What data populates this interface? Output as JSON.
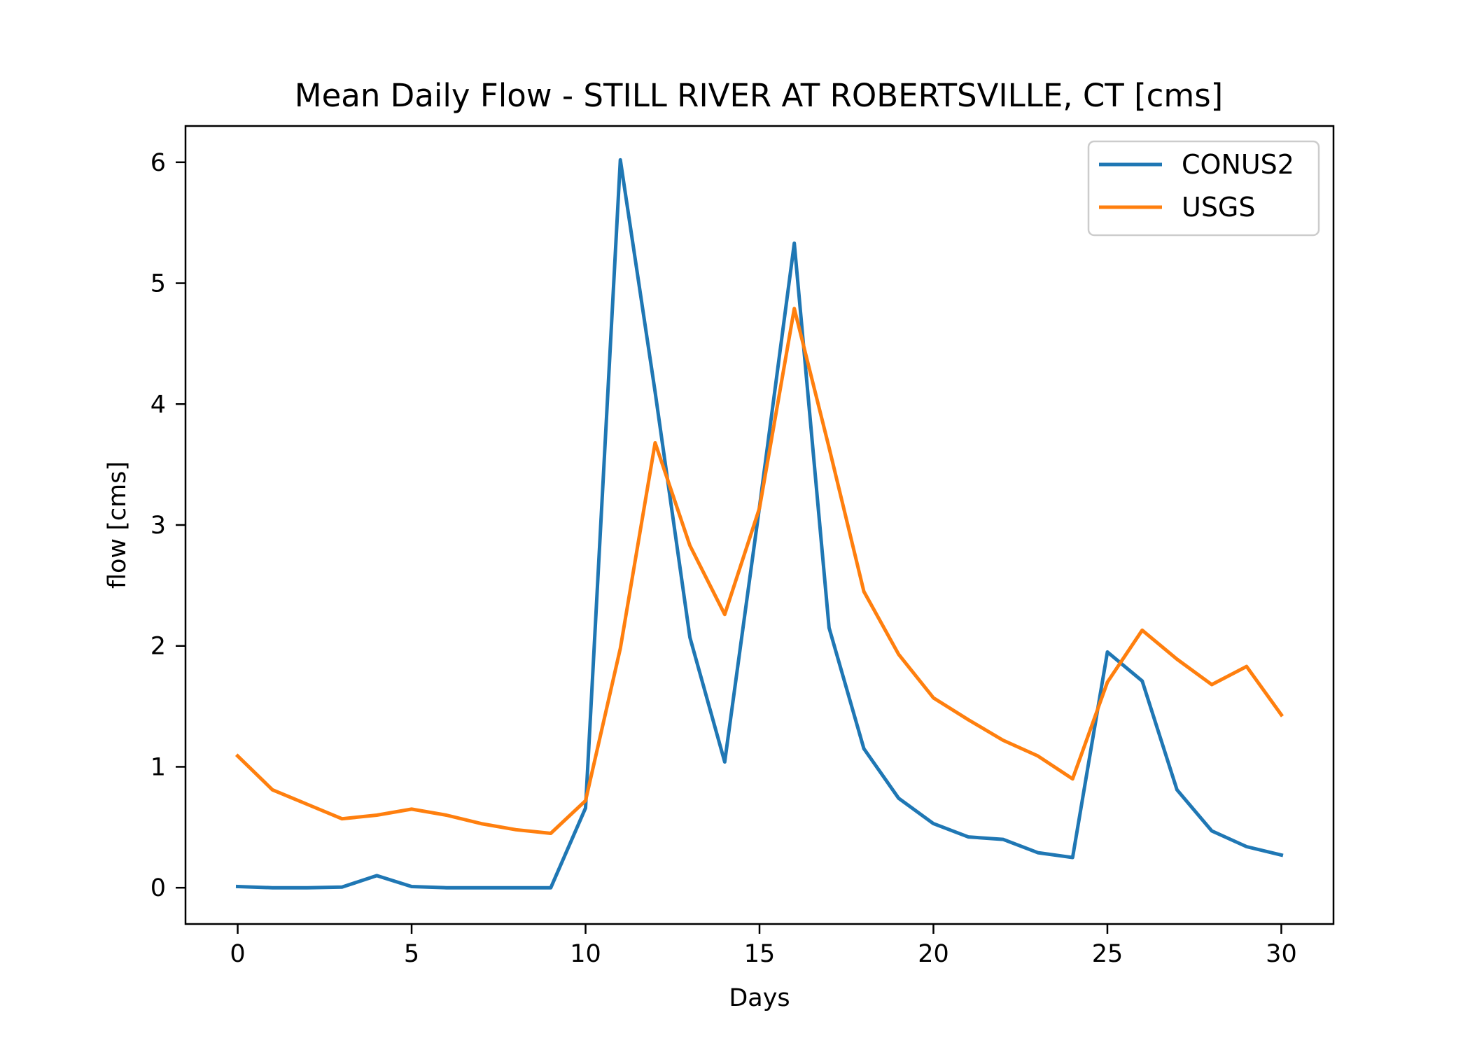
{
  "chart_data": {
    "type": "line",
    "title": "Mean Daily Flow - STILL RIVER AT ROBERTSVILLE, CT [cms]",
    "xlabel": "Days",
    "ylabel": "flow [cms]",
    "xlim": [
      -1.5,
      31.5
    ],
    "ylim": [
      -0.3,
      6.3
    ],
    "xticks": [
      0,
      5,
      10,
      15,
      20,
      25,
      30
    ],
    "yticks": [
      0,
      1,
      2,
      3,
      4,
      5,
      6
    ],
    "grid": false,
    "legend_position": "top-right",
    "x": [
      0,
      1,
      2,
      3,
      4,
      5,
      6,
      7,
      8,
      9,
      10,
      11,
      12,
      13,
      14,
      15,
      16,
      17,
      18,
      19,
      20,
      21,
      22,
      23,
      24,
      25,
      26,
      27,
      28,
      29,
      30
    ],
    "series": [
      {
        "name": "CONUS2",
        "color": "#1f77b4",
        "values": [
          0.01,
          0.0,
          0.0,
          0.005,
          0.1,
          0.01,
          0.0,
          0.0,
          0.0,
          0.0,
          0.66,
          6.02,
          4.1,
          2.07,
          1.04,
          3.15,
          5.33,
          2.15,
          1.15,
          0.74,
          0.53,
          0.42,
          0.4,
          0.29,
          0.25,
          1.95,
          1.71,
          0.81,
          0.47,
          0.34,
          0.27
        ]
      },
      {
        "name": "USGS",
        "color": "#ff7f0e",
        "values": [
          1.09,
          0.81,
          0.69,
          0.57,
          0.6,
          0.65,
          0.6,
          0.53,
          0.48,
          0.45,
          0.72,
          1.98,
          3.68,
          2.83,
          2.26,
          3.14,
          4.79,
          3.64,
          2.45,
          1.93,
          1.57,
          1.39,
          1.22,
          1.09,
          0.9,
          1.7,
          2.13,
          1.89,
          1.68,
          1.83,
          1.43
        ]
      }
    ]
  }
}
